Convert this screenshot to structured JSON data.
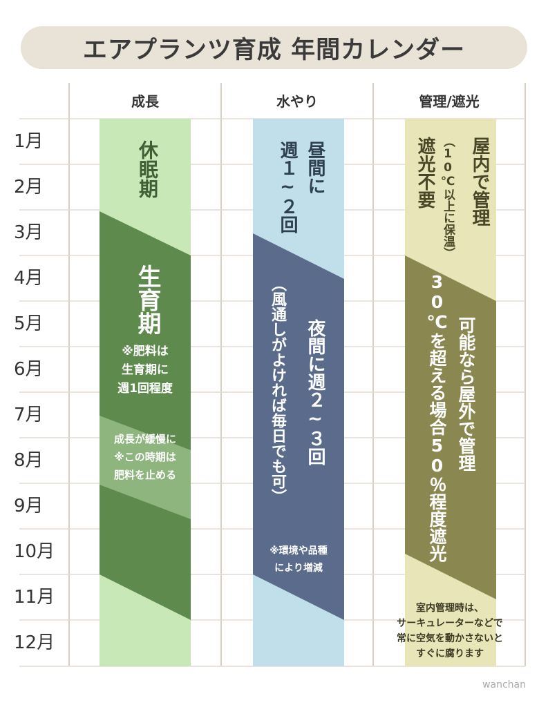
{
  "title": "エアプランツ育成  年間カレンダー",
  "columns": [
    "成長",
    "水やり",
    "管理/遮光"
  ],
  "months": [
    "1月",
    "2月",
    "3月",
    "4月",
    "5月",
    "6月",
    "7月",
    "8月",
    "9月",
    "10月",
    "11月",
    "12月"
  ],
  "growth": {
    "dormant": "休眠期",
    "growing": "生育期",
    "fertilizer_note": "※肥料は\n生育期に\n週1回程度",
    "slow_note": "成長が緩慢に\n※この時期は\n肥料を止める"
  },
  "water": {
    "daytime": "昼間に",
    "daytime_freq": "週１~２回",
    "night": "夜間に週２~３回",
    "night_note": "（風通しがよければ毎日でも可）",
    "env_note": "※環境や品種\nにより増減"
  },
  "management": {
    "indoor": "屋内で管理",
    "indoor_note": "（10℃以上に保温）",
    "no_shade": "遮光不要",
    "outdoor": "可能なら屋外で管理",
    "shade": "30℃を超える場合50％程度遮光",
    "indoor_tip": "室内管理時は、\nサーキュレーターなどで\n常に空気を動かさないと\nすぐに腐ります"
  },
  "credit": "wanchan",
  "colors": {
    "title_bg": "#e9e2d7",
    "light_green": "#c9e8b8",
    "dark_green": "#5e8a4e",
    "mid_green": "#8eb57e",
    "light_blue": "#c1dfeb",
    "slate_blue": "#5a6b8c",
    "light_olive": "#e8e5b8",
    "dark_olive": "#8a8750",
    "grid_line": "#d8cfc2"
  }
}
